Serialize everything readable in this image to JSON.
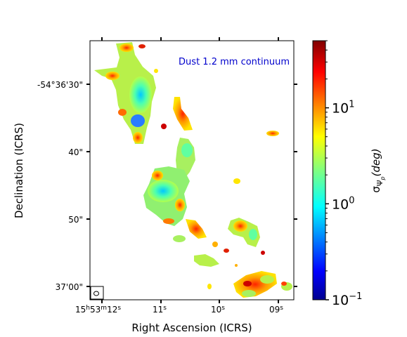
{
  "chart_data": {
    "type": "heatmap",
    "title": "",
    "annotation": {
      "text": "Dust 1.2 mm continuum",
      "color": "#0000cc"
    },
    "xlabel": "Right Ascension (ICRS)",
    "ylabel": "Declination (ICRS)",
    "x_ticks": [
      {
        "h": "15",
        "m": "53",
        "s": "12"
      },
      {
        "s": "11"
      },
      {
        "s": "10"
      },
      {
        "s": "09"
      }
    ],
    "y_ticks": [
      "-54°36'30\"",
      "40\"",
      "50\"",
      "37'00\""
    ],
    "colorbar": {
      "label": "σΨp (deg)",
      "label_main": "σ",
      "label_sub": "Ψ",
      "label_subsub": "p",
      "label_tail": "(deg)",
      "scale": "log",
      "range": [
        0.1,
        50
      ],
      "colormap": "jet",
      "ticks": [
        {
          "value": 0.1,
          "base": "10",
          "exp": "−1"
        },
        {
          "value": 1,
          "base": "10",
          "exp": "0"
        },
        {
          "value": 10,
          "base": "10",
          "exp": "1"
        }
      ]
    },
    "beam_marker": "ellipse"
  }
}
